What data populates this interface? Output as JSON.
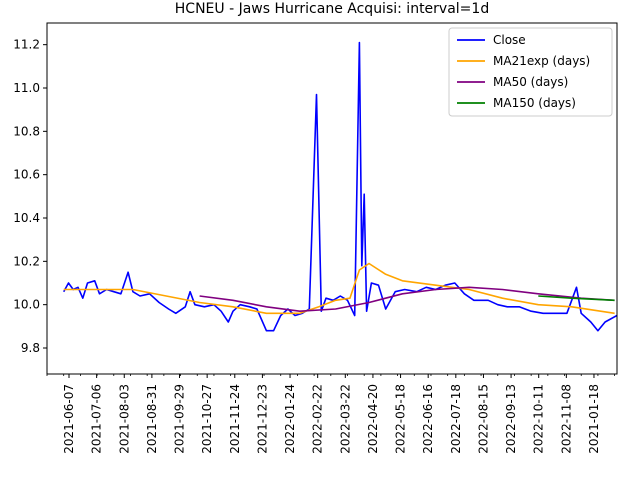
{
  "chart_data": {
    "type": "line",
    "title": "HCNEU - Jaws Hurricane Acquisi: interval=1d",
    "xlabel": "",
    "ylabel": "",
    "x_range": [
      "2021-05-31",
      "2022-01-25"
    ],
    "ylim": [
      9.68,
      11.3
    ],
    "y_ticks": [
      9.8,
      10.0,
      10.2,
      10.4,
      10.6,
      10.8,
      11.0,
      11.2
    ],
    "x_ticks": [
      "2021-06-07",
      "2021-07-06",
      "2021-08-03",
      "2021-08-31",
      "2021-09-29",
      "2021-10-27",
      "2021-11-24",
      "2021-12-23",
      "2022-01-24",
      "2022-02-22",
      "2022-03-22",
      "2022-04-20",
      "2022-05-18",
      "2022-06-16",
      "2022-07-18",
      "2022-08-15",
      "2022-09-13",
      "2022-10-11",
      "2022-11-08",
      "2021-01-18"
    ],
    "grid": false,
    "legend_position": "top-right",
    "series": [
      {
        "name": "Close",
        "color": "#0000ff",
        "points": [
          [
            "2021-06-07",
            10.06
          ],
          [
            "2021-06-09",
            10.1
          ],
          [
            "2021-06-11",
            10.07
          ],
          [
            "2021-06-13",
            10.08
          ],
          [
            "2021-06-15",
            10.03
          ],
          [
            "2021-06-17",
            10.1
          ],
          [
            "2021-06-20",
            10.11
          ],
          [
            "2021-06-22",
            10.05
          ],
          [
            "2021-06-25",
            10.07
          ],
          [
            "2021-06-28",
            10.06
          ],
          [
            "2021-07-01",
            10.05
          ],
          [
            "2021-07-04",
            10.15
          ],
          [
            "2021-07-06",
            10.06
          ],
          [
            "2021-07-09",
            10.04
          ],
          [
            "2021-07-13",
            10.05
          ],
          [
            "2021-07-17",
            10.01
          ],
          [
            "2021-07-21",
            9.98
          ],
          [
            "2021-07-24",
            9.96
          ],
          [
            "2021-07-28",
            9.99
          ],
          [
            "2021-07-30",
            10.06
          ],
          [
            "2021-08-01",
            10.0
          ],
          [
            "2021-08-05",
            9.99
          ],
          [
            "2021-08-09",
            10.0
          ],
          [
            "2021-08-12",
            9.97
          ],
          [
            "2021-08-15",
            9.92
          ],
          [
            "2021-08-17",
            9.97
          ],
          [
            "2021-08-20",
            10.0
          ],
          [
            "2021-08-24",
            9.99
          ],
          [
            "2021-08-27",
            9.98
          ],
          [
            "2021-08-31",
            9.88
          ],
          [
            "2021-09-03",
            9.88
          ],
          [
            "2021-09-06",
            9.95
          ],
          [
            "2021-09-09",
            9.98
          ],
          [
            "2021-09-12",
            9.95
          ],
          [
            "2021-09-15",
            9.96
          ],
          [
            "2021-09-18",
            9.98
          ],
          [
            "2021-09-21",
            10.97
          ],
          [
            "2021-09-23",
            9.97
          ],
          [
            "2021-09-25",
            10.03
          ],
          [
            "2021-09-28",
            10.02
          ],
          [
            "2021-10-01",
            10.04
          ],
          [
            "2021-10-04",
            10.02
          ],
          [
            "2021-10-07",
            9.95
          ],
          [
            "2021-10-09",
            11.21
          ],
          [
            "2021-10-10",
            10.18
          ],
          [
            "2021-10-11",
            10.51
          ],
          [
            "2021-10-12",
            9.97
          ],
          [
            "2021-10-14",
            10.1
          ],
          [
            "2021-10-17",
            10.09
          ],
          [
            "2021-10-20",
            9.98
          ],
          [
            "2021-10-24",
            10.06
          ],
          [
            "2021-10-28",
            10.07
          ],
          [
            "2021-11-02",
            10.06
          ],
          [
            "2021-11-06",
            10.08
          ],
          [
            "2021-11-10",
            10.07
          ],
          [
            "2021-11-14",
            10.09
          ],
          [
            "2021-11-18",
            10.1
          ],
          [
            "2021-11-22",
            10.05
          ],
          [
            "2021-11-26",
            10.02
          ],
          [
            "2021-12-02",
            10.02
          ],
          [
            "2021-12-06",
            10.0
          ],
          [
            "2021-12-10",
            9.99
          ],
          [
            "2021-12-15",
            9.99
          ],
          [
            "2021-12-20",
            9.97
          ],
          [
            "2021-12-25",
            9.96
          ],
          [
            "2021-12-30",
            9.96
          ],
          [
            "2022-01-04",
            9.96
          ],
          [
            "2022-01-08",
            10.08
          ],
          [
            "2022-01-10",
            9.96
          ],
          [
            "2022-01-14",
            9.92
          ],
          [
            "2022-01-17",
            9.88
          ],
          [
            "2022-01-20",
            9.92
          ],
          [
            "2022-01-25",
            9.95
          ]
        ]
      },
      {
        "name": "MA21exp (days)",
        "color": "#ffa500",
        "points": [
          [
            "2021-06-07",
            10.07
          ],
          [
            "2021-06-20",
            10.07
          ],
          [
            "2021-07-06",
            10.07
          ],
          [
            "2021-07-20",
            10.04
          ],
          [
            "2021-08-03",
            10.01
          ],
          [
            "2021-08-17",
            9.99
          ],
          [
            "2021-08-31",
            9.96
          ],
          [
            "2021-09-14",
            9.96
          ],
          [
            "2021-09-22",
            9.99
          ],
          [
            "2021-09-29",
            10.02
          ],
          [
            "2021-10-05",
            10.03
          ],
          [
            "2021-10-09",
            10.16
          ],
          [
            "2021-10-13",
            10.19
          ],
          [
            "2021-10-20",
            10.14
          ],
          [
            "2021-10-27",
            10.11
          ],
          [
            "2021-11-10",
            10.09
          ],
          [
            "2021-11-24",
            10.07
          ],
          [
            "2021-12-08",
            10.03
          ],
          [
            "2021-12-23",
            10.0
          ],
          [
            "2022-01-06",
            9.99
          ],
          [
            "2022-01-24",
            9.96
          ]
        ]
      },
      {
        "name": "MA50 (days)",
        "color": "#800080",
        "points": [
          [
            "2021-08-03",
            10.04
          ],
          [
            "2021-08-17",
            10.02
          ],
          [
            "2021-08-31",
            9.99
          ],
          [
            "2021-09-14",
            9.97
          ],
          [
            "2021-09-29",
            9.98
          ],
          [
            "2021-10-13",
            10.01
          ],
          [
            "2021-10-27",
            10.05
          ],
          [
            "2021-11-10",
            10.07
          ],
          [
            "2021-11-24",
            10.08
          ],
          [
            "2021-12-08",
            10.07
          ],
          [
            "2021-12-23",
            10.05
          ],
          [
            "2022-01-10",
            10.03
          ],
          [
            "2022-01-24",
            10.02
          ]
        ]
      },
      {
        "name": "MA150 (days)",
        "color": "#008000",
        "points": [
          [
            "2021-12-23",
            10.04
          ],
          [
            "2022-01-06",
            10.03
          ],
          [
            "2022-01-24",
            10.02
          ]
        ]
      }
    ]
  }
}
